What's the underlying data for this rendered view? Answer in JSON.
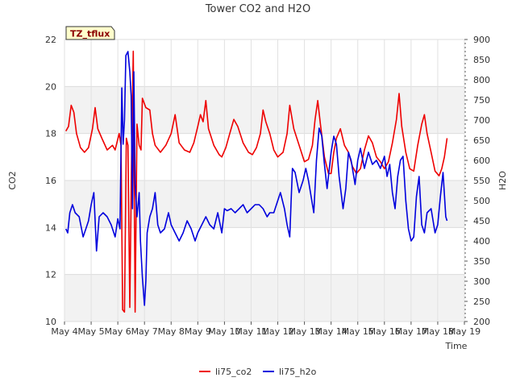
{
  "chart_data": {
    "type": "line",
    "title": "Tower CO2 and H2O",
    "badge": "TZ_tflux",
    "xlabel": "Time",
    "ylabel_left": "CO2",
    "ylabel_right": "H2O",
    "x_ticks": [
      "May 4",
      "May 5",
      "May 6",
      "May 7",
      "May 8",
      "May 9",
      "May 10",
      "May 11",
      "May 12",
      "May 13",
      "May 14",
      "May 15",
      "May 16",
      "May 17",
      "May 18",
      "May 19"
    ],
    "xlim": [
      4,
      19
    ],
    "ylim_left": [
      10,
      22
    ],
    "ylim_right": [
      200,
      900
    ],
    "yticks_left": [
      10,
      12,
      14,
      16,
      18,
      20,
      22
    ],
    "yticks_right": [
      200,
      250,
      300,
      350,
      400,
      450,
      500,
      550,
      600,
      650,
      700,
      750,
      800,
      850,
      900
    ],
    "grid": true,
    "legend_position": "bottom-center",
    "series": [
      {
        "name": "li75_co2",
        "color": "#ee0000",
        "axis": "left",
        "points": [
          [
            4.05,
            18.1
          ],
          [
            4.15,
            18.3
          ],
          [
            4.25,
            19.2
          ],
          [
            4.35,
            18.9
          ],
          [
            4.45,
            18.0
          ],
          [
            4.6,
            17.4
          ],
          [
            4.75,
            17.2
          ],
          [
            4.9,
            17.4
          ],
          [
            5.05,
            18.2
          ],
          [
            5.15,
            19.1
          ],
          [
            5.25,
            18.2
          ],
          [
            5.4,
            17.8
          ],
          [
            5.6,
            17.3
          ],
          [
            5.8,
            17.5
          ],
          [
            5.9,
            17.3
          ],
          [
            6.05,
            18.0
          ],
          [
            6.12,
            17.5
          ],
          [
            6.18,
            10.5
          ],
          [
            6.25,
            10.4
          ],
          [
            6.32,
            17.8
          ],
          [
            6.38,
            17.5
          ],
          [
            6.45,
            10.6
          ],
          [
            6.52,
            17.2
          ],
          [
            6.58,
            21.5
          ],
          [
            6.65,
            10.4
          ],
          [
            6.72,
            18.4
          ],
          [
            6.8,
            17.5
          ],
          [
            6.87,
            17.3
          ],
          [
            6.92,
            19.5
          ],
          [
            7.05,
            19.1
          ],
          [
            7.2,
            19.0
          ],
          [
            7.3,
            18.0
          ],
          [
            7.4,
            17.5
          ],
          [
            7.6,
            17.2
          ],
          [
            7.8,
            17.5
          ],
          [
            8.0,
            18.0
          ],
          [
            8.15,
            18.8
          ],
          [
            8.2,
            18.4
          ],
          [
            8.3,
            17.6
          ],
          [
            8.5,
            17.3
          ],
          [
            8.7,
            17.2
          ],
          [
            8.85,
            17.6
          ],
          [
            9.0,
            18.3
          ],
          [
            9.1,
            18.8
          ],
          [
            9.2,
            18.5
          ],
          [
            9.3,
            19.4
          ],
          [
            9.4,
            18.2
          ],
          [
            9.6,
            17.5
          ],
          [
            9.8,
            17.1
          ],
          [
            9.9,
            17.0
          ],
          [
            10.05,
            17.4
          ],
          [
            10.2,
            18.0
          ],
          [
            10.35,
            18.6
          ],
          [
            10.5,
            18.3
          ],
          [
            10.7,
            17.6
          ],
          [
            10.9,
            17.2
          ],
          [
            11.05,
            17.1
          ],
          [
            11.2,
            17.4
          ],
          [
            11.35,
            18.0
          ],
          [
            11.45,
            19.0
          ],
          [
            11.55,
            18.5
          ],
          [
            11.7,
            18.0
          ],
          [
            11.85,
            17.3
          ],
          [
            12.0,
            17.0
          ],
          [
            12.2,
            17.2
          ],
          [
            12.35,
            18.0
          ],
          [
            12.45,
            19.2
          ],
          [
            12.6,
            18.2
          ],
          [
            12.8,
            17.5
          ],
          [
            13.0,
            16.8
          ],
          [
            13.15,
            16.9
          ],
          [
            13.3,
            17.5
          ],
          [
            13.4,
            18.6
          ],
          [
            13.5,
            19.4
          ],
          [
            13.6,
            18.4
          ],
          [
            13.75,
            17.0
          ],
          [
            13.9,
            16.3
          ],
          [
            14.0,
            16.3
          ],
          [
            14.1,
            17.2
          ],
          [
            14.2,
            17.8
          ],
          [
            14.35,
            18.2
          ],
          [
            14.5,
            17.5
          ],
          [
            14.65,
            17.2
          ],
          [
            14.8,
            16.6
          ],
          [
            14.95,
            16.3
          ],
          [
            15.1,
            16.5
          ],
          [
            15.25,
            17.3
          ],
          [
            15.4,
            17.9
          ],
          [
            15.55,
            17.6
          ],
          [
            15.7,
            17.0
          ],
          [
            15.85,
            16.8
          ],
          [
            16.0,
            16.5
          ],
          [
            16.15,
            16.8
          ],
          [
            16.3,
            17.6
          ],
          [
            16.45,
            18.6
          ],
          [
            16.55,
            19.7
          ],
          [
            16.65,
            18.3
          ],
          [
            16.8,
            17.2
          ],
          [
            16.95,
            16.5
          ],
          [
            17.1,
            16.4
          ],
          [
            17.25,
            17.5
          ],
          [
            17.4,
            18.4
          ],
          [
            17.5,
            18.8
          ],
          [
            17.6,
            18.0
          ],
          [
            17.75,
            17.2
          ],
          [
            17.9,
            16.4
          ],
          [
            18.05,
            16.2
          ],
          [
            18.15,
            16.5
          ],
          [
            18.25,
            17.0
          ],
          [
            18.35,
            17.8
          ]
        ]
      },
      {
        "name": "li75_h2o",
        "color": "#0000dd",
        "axis": "right",
        "points": [
          [
            4.05,
            430
          ],
          [
            4.12,
            420
          ],
          [
            4.2,
            470
          ],
          [
            4.3,
            490
          ],
          [
            4.4,
            470
          ],
          [
            4.55,
            460
          ],
          [
            4.7,
            410
          ],
          [
            4.8,
            430
          ],
          [
            4.9,
            450
          ],
          [
            5.0,
            490
          ],
          [
            5.1,
            520
          ],
          [
            5.2,
            375
          ],
          [
            5.3,
            460
          ],
          [
            5.45,
            470
          ],
          [
            5.6,
            460
          ],
          [
            5.75,
            440
          ],
          [
            5.9,
            410
          ],
          [
            6.0,
            455
          ],
          [
            6.08,
            430
          ],
          [
            6.15,
            780
          ],
          [
            6.2,
            640
          ],
          [
            6.25,
            700
          ],
          [
            6.3,
            860
          ],
          [
            6.38,
            870
          ],
          [
            6.45,
            820
          ],
          [
            6.5,
            760
          ],
          [
            6.55,
            480
          ],
          [
            6.6,
            820
          ],
          [
            6.65,
            540
          ],
          [
            6.72,
            460
          ],
          [
            6.8,
            520
          ],
          [
            6.85,
            400
          ],
          [
            6.92,
            310
          ],
          [
            7.0,
            240
          ],
          [
            7.05,
            300
          ],
          [
            7.1,
            420
          ],
          [
            7.2,
            460
          ],
          [
            7.3,
            480
          ],
          [
            7.4,
            520
          ],
          [
            7.5,
            440
          ],
          [
            7.6,
            420
          ],
          [
            7.75,
            430
          ],
          [
            7.9,
            470
          ],
          [
            8.0,
            440
          ],
          [
            8.15,
            420
          ],
          [
            8.3,
            400
          ],
          [
            8.45,
            420
          ],
          [
            8.6,
            450
          ],
          [
            8.75,
            430
          ],
          [
            8.9,
            400
          ],
          [
            9.0,
            420
          ],
          [
            9.15,
            440
          ],
          [
            9.3,
            460
          ],
          [
            9.45,
            440
          ],
          [
            9.6,
            430
          ],
          [
            9.75,
            470
          ],
          [
            9.9,
            420
          ],
          [
            10.0,
            480
          ],
          [
            10.1,
            475
          ],
          [
            10.25,
            480
          ],
          [
            10.4,
            470
          ],
          [
            10.55,
            480
          ],
          [
            10.7,
            490
          ],
          [
            10.85,
            470
          ],
          [
            11.0,
            480
          ],
          [
            11.15,
            490
          ],
          [
            11.3,
            490
          ],
          [
            11.45,
            480
          ],
          [
            11.6,
            460
          ],
          [
            11.7,
            470
          ],
          [
            11.85,
            470
          ],
          [
            12.0,
            500
          ],
          [
            12.1,
            520
          ],
          [
            12.25,
            480
          ],
          [
            12.35,
            440
          ],
          [
            12.45,
            410
          ],
          [
            12.5,
            500
          ],
          [
            12.55,
            580
          ],
          [
            12.65,
            570
          ],
          [
            12.8,
            520
          ],
          [
            12.95,
            550
          ],
          [
            13.05,
            580
          ],
          [
            13.15,
            550
          ],
          [
            13.25,
            510
          ],
          [
            13.35,
            470
          ],
          [
            13.45,
            600
          ],
          [
            13.55,
            680
          ],
          [
            13.65,
            660
          ],
          [
            13.75,
            590
          ],
          [
            13.85,
            530
          ],
          [
            14.0,
            620
          ],
          [
            14.1,
            660
          ],
          [
            14.2,
            640
          ],
          [
            14.3,
            560
          ],
          [
            14.45,
            480
          ],
          [
            14.55,
            530
          ],
          [
            14.65,
            620
          ],
          [
            14.75,
            600
          ],
          [
            14.9,
            540
          ],
          [
            15.0,
            600
          ],
          [
            15.1,
            630
          ],
          [
            15.25,
            580
          ],
          [
            15.4,
            620
          ],
          [
            15.55,
            590
          ],
          [
            15.7,
            600
          ],
          [
            15.85,
            580
          ],
          [
            16.0,
            610
          ],
          [
            16.1,
            560
          ],
          [
            16.2,
            590
          ],
          [
            16.3,
            520
          ],
          [
            16.4,
            480
          ],
          [
            16.5,
            560
          ],
          [
            16.6,
            600
          ],
          [
            16.7,
            610
          ],
          [
            16.8,
            500
          ],
          [
            16.9,
            430
          ],
          [
            17.0,
            400
          ],
          [
            17.1,
            410
          ],
          [
            17.2,
            510
          ],
          [
            17.3,
            560
          ],
          [
            17.4,
            440
          ],
          [
            17.5,
            420
          ],
          [
            17.6,
            470
          ],
          [
            17.75,
            480
          ],
          [
            17.9,
            420
          ],
          [
            18.0,
            440
          ],
          [
            18.1,
            510
          ],
          [
            18.2,
            570
          ],
          [
            18.3,
            460
          ],
          [
            18.35,
            450
          ]
        ]
      }
    ]
  }
}
